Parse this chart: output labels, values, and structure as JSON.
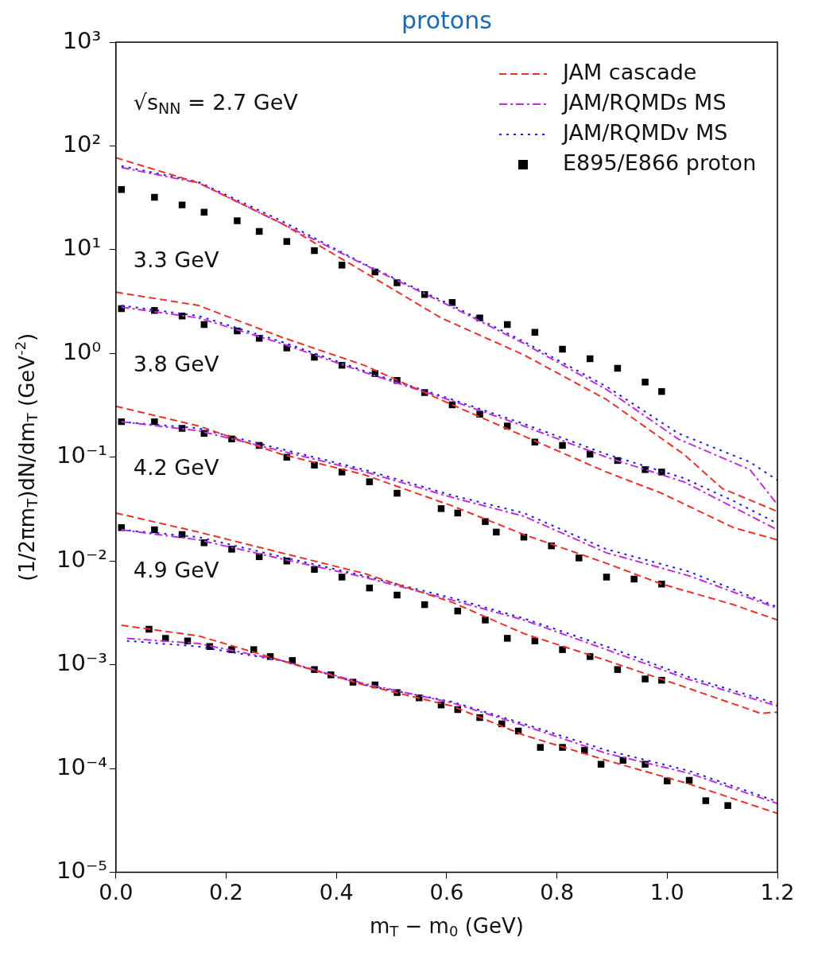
{
  "chart_data": {
    "type": "line",
    "title": "protons",
    "xlabel": "m$_{T}$ − m$_{0}$ (GeV)",
    "ylabel": "(1/2πm$_{T}$)dN/dm$_{T}$ (GeV$^{-2}$)",
    "xlim": [
      0,
      1.2
    ],
    "xticks": [
      {
        "value": 0,
        "label": "0.0"
      },
      0.2,
      0.4,
      0.6,
      0.8,
      {
        "value": 1,
        "label": "1.0"
      },
      1.2
    ],
    "ylim": [
      1e-05,
      1000
    ],
    "log": "y",
    "grid": false,
    "legend": "top right",
    "yticks": [
      {
        "value": 1e-05,
        "label": "10⁻⁵"
      },
      {
        "value": 0.0001,
        "label": "10⁻⁴"
      },
      {
        "value": 0.001,
        "label": "10⁻³"
      },
      {
        "value": 0.01,
        "label": "10⁻²"
      },
      {
        "value": 0.1,
        "label": "10⁻¹"
      },
      {
        "value": 1,
        "label": "10⁰"
      },
      {
        "value": 10,
        "label": "10¹"
      },
      {
        "value": 100,
        "label": "10²"
      },
      {
        "value": 1000,
        "label": "10³"
      }
    ],
    "annotations": [
      "√s$_{NN}$ = 2.7 GeV",
      "3.3 GeV",
      "3.8 GeV",
      "4.2 GeV",
      "4.9 GeV"
    ],
    "series": [
      {
        "name": "JAM cascade",
        "type": "line",
        "color": "#e8332a",
        "line_style": "dashed",
        "marker": "none",
        "x": [
          0,
          0.15,
          0.3,
          0.45,
          0.59,
          0.74,
          0.89,
          1.03,
          1.1,
          1.2
        ],
        "values": [
          77,
          44,
          18,
          6.1,
          2.2,
          0.97,
          0.36,
          0.107,
          0.05,
          0.03
        ]
      },
      {
        "name": "JAM/RQMDs MS",
        "type": "line",
        "color": "#bf2fd8",
        "line_style": "dashdot",
        "marker": "none",
        "x": [
          0.01,
          0.15,
          0.3,
          0.45,
          0.61,
          0.74,
          0.89,
          1.02,
          1.15,
          1.2
        ],
        "values": [
          62,
          44,
          18,
          7.2,
          2.8,
          1.25,
          0.45,
          0.15,
          0.076,
          0.035
        ]
      },
      {
        "name": "JAM/RQMDv MS",
        "type": "line",
        "color": "#1f1fe0",
        "line_style": "dotted",
        "marker": "none",
        "x": [
          0.01,
          0.15,
          0.3,
          0.45,
          0.61,
          0.74,
          0.89,
          1.02,
          1.15,
          1.2
        ],
        "values": [
          64,
          45,
          19,
          7.3,
          2.9,
          1.3,
          0.48,
          0.17,
          0.09,
          0.06
        ]
      },
      {
        "name": "E895/E866 proton",
        "type": "scatter",
        "color": "#000000",
        "marker": "square",
        "x": [
          0.01,
          0.07,
          0.12,
          0.16,
          0.22,
          0.26,
          0.31,
          0.36,
          0.41,
          0.47,
          0.51,
          0.56,
          0.61,
          0.66,
          0.71,
          0.76,
          0.81,
          0.86,
          0.91,
          0.96,
          0.99
        ],
        "values": [
          38,
          32,
          27,
          23,
          19,
          15,
          12,
          9.8,
          7.1,
          6.1,
          4.8,
          3.7,
          3.1,
          2.2,
          1.9,
          1.6,
          1.1,
          0.89,
          0.72,
          0.53,
          0.43
        ]
      },
      {
        "type": "line",
        "color": "#e8332a",
        "line_style": "dashed",
        "marker": "none",
        "x": [
          0,
          0.15,
          0.3,
          0.45,
          0.61,
          0.74,
          0.89,
          0.99,
          1.12,
          1.2
        ],
        "values": [
          3.9,
          2.9,
          1.44,
          0.77,
          0.32,
          0.16,
          0.072,
          0.045,
          0.021,
          0.016
        ]
      },
      {
        "type": "line",
        "color": "#bf2fd8",
        "line_style": "dashdot",
        "marker": "none",
        "x": [
          0.01,
          0.15,
          0.3,
          0.45,
          0.61,
          0.74,
          0.89,
          1.03,
          1.12,
          1.2
        ],
        "values": [
          2.8,
          2.2,
          1.25,
          0.66,
          0.35,
          0.2,
          0.1,
          0.058,
          0.033,
          0.02
        ]
      },
      {
        "type": "line",
        "color": "#1f1fe0",
        "line_style": "dotted",
        "marker": "none",
        "x": [
          0.01,
          0.15,
          0.3,
          0.45,
          0.61,
          0.74,
          0.89,
          1.03,
          1.12,
          1.2
        ],
        "values": [
          2.9,
          2.3,
          1.3,
          0.68,
          0.36,
          0.21,
          0.107,
          0.063,
          0.038,
          0.023
        ]
      },
      {
        "type": "scatter",
        "color": "#000000",
        "marker": "square",
        "x": [
          0.01,
          0.07,
          0.12,
          0.16,
          0.22,
          0.26,
          0.31,
          0.36,
          0.41,
          0.47,
          0.51,
          0.56,
          0.61,
          0.66,
          0.71,
          0.76,
          0.81,
          0.86,
          0.91,
          0.96,
          0.99
        ],
        "values": [
          2.7,
          2.6,
          2.3,
          1.9,
          1.65,
          1.4,
          1.13,
          0.92,
          0.77,
          0.64,
          0.55,
          0.42,
          0.32,
          0.26,
          0.2,
          0.14,
          0.13,
          0.107,
          0.093,
          0.076,
          0.072
        ]
      },
      {
        "type": "line",
        "color": "#e8332a",
        "line_style": "dashed",
        "marker": "none",
        "x": [
          0,
          0.15,
          0.3,
          0.45,
          0.61,
          0.74,
          0.89,
          0.99,
          1.12,
          1.2
        ],
        "values": [
          0.31,
          0.2,
          0.107,
          0.068,
          0.034,
          0.018,
          0.0095,
          0.006,
          0.0038,
          0.0027
        ]
      },
      {
        "type": "line",
        "color": "#bf2fd8",
        "line_style": "dashdot",
        "marker": "none",
        "x": [
          0.01,
          0.15,
          0.3,
          0.45,
          0.61,
          0.74,
          0.89,
          1.04,
          1.2
        ],
        "values": [
          0.22,
          0.18,
          0.115,
          0.073,
          0.041,
          0.027,
          0.012,
          0.0072,
          0.0035
        ]
      },
      {
        "type": "line",
        "color": "#1f1fe0",
        "line_style": "dotted",
        "marker": "none",
        "x": [
          0.01,
          0.15,
          0.3,
          0.45,
          0.61,
          0.74,
          0.89,
          1.04,
          1.2
        ],
        "values": [
          0.22,
          0.19,
          0.12,
          0.076,
          0.043,
          0.029,
          0.013,
          0.0079,
          0.0036
        ]
      },
      {
        "type": "scatter",
        "color": "#000000",
        "marker": "square",
        "x": [
          0.01,
          0.07,
          0.12,
          0.16,
          0.21,
          0.26,
          0.31,
          0.36,
          0.41,
          0.46,
          0.51,
          0.59,
          0.62,
          0.67,
          0.69,
          0.74,
          0.79,
          0.84,
          0.89,
          0.94,
          0.99
        ],
        "values": [
          0.22,
          0.22,
          0.19,
          0.17,
          0.15,
          0.13,
          0.1,
          0.084,
          0.072,
          0.058,
          0.045,
          0.032,
          0.029,
          0.024,
          0.019,
          0.017,
          0.014,
          0.0107,
          0.007,
          0.0067,
          0.006
        ]
      },
      {
        "type": "line",
        "color": "#e8332a",
        "line_style": "dashed",
        "marker": "none",
        "x": [
          0,
          0.15,
          0.3,
          0.45,
          0.61,
          0.74,
          0.89,
          1.04,
          1.17,
          1.2
        ],
        "values": [
          0.029,
          0.019,
          0.012,
          0.0076,
          0.004,
          0.002,
          0.0011,
          0.00059,
          0.00034,
          0.00035
        ]
      },
      {
        "type": "line",
        "color": "#bf2fd8",
        "line_style": "dashdot",
        "marker": "none",
        "x": [
          0.01,
          0.15,
          0.3,
          0.45,
          0.61,
          0.74,
          0.89,
          1.04,
          1.2
        ],
        "values": [
          0.02,
          0.016,
          0.0105,
          0.007,
          0.0042,
          0.0027,
          0.0014,
          0.00072,
          0.0004
        ]
      },
      {
        "type": "line",
        "color": "#1f1fe0",
        "line_style": "dotted",
        "marker": "none",
        "x": [
          0.01,
          0.15,
          0.3,
          0.45,
          0.61,
          0.74,
          0.89,
          1.04,
          1.2
        ],
        "values": [
          0.02,
          0.017,
          0.011,
          0.0072,
          0.0044,
          0.0028,
          0.0015,
          0.00076,
          0.00042
        ]
      },
      {
        "type": "scatter",
        "color": "#000000",
        "marker": "square",
        "x": [
          0.01,
          0.07,
          0.12,
          0.16,
          0.21,
          0.26,
          0.31,
          0.36,
          0.41,
          0.46,
          0.51,
          0.56,
          0.62,
          0.67,
          0.71,
          0.76,
          0.81,
          0.86,
          0.91,
          0.96,
          0.99
        ],
        "values": [
          0.021,
          0.02,
          0.018,
          0.015,
          0.013,
          0.011,
          0.01,
          0.0083,
          0.007,
          0.0055,
          0.0047,
          0.0038,
          0.0033,
          0.0027,
          0.0018,
          0.0017,
          0.0014,
          0.0012,
          0.0009,
          0.00073,
          0.00071
        ]
      },
      {
        "type": "line",
        "color": "#e8332a",
        "line_style": "dashed",
        "marker": "none",
        "x": [
          0.01,
          0.15,
          0.3,
          0.45,
          0.61,
          0.74,
          0.89,
          1.04,
          1.2
        ],
        "values": [
          0.0024,
          0.0019,
          0.0011,
          0.00064,
          0.0004,
          0.00021,
          0.00012,
          7.1e-05,
          3.7e-05
        ]
      },
      {
        "type": "line",
        "color": "#bf2fd8",
        "line_style": "dashdot",
        "marker": "none",
        "x": [
          0.02,
          0.15,
          0.3,
          0.45,
          0.61,
          0.74,
          0.89,
          1.04,
          1.2
        ],
        "values": [
          0.0018,
          0.0016,
          0.0011,
          0.00066,
          0.00043,
          0.00026,
          0.00014,
          9e-05,
          4.6e-05
        ]
      },
      {
        "type": "line",
        "color": "#1f1fe0",
        "line_style": "dotted",
        "marker": "none",
        "x": [
          0.02,
          0.15,
          0.3,
          0.45,
          0.61,
          0.74,
          0.89,
          1.04,
          1.2
        ],
        "values": [
          0.0017,
          0.0015,
          0.0011,
          0.00064,
          0.00044,
          0.00027,
          0.00015,
          9.5e-05,
          4.8e-05
        ]
      },
      {
        "type": "scatter",
        "color": "#000000",
        "marker": "square",
        "x": [
          0.06,
          0.09,
          0.13,
          0.17,
          0.21,
          0.25,
          0.28,
          0.32,
          0.36,
          0.39,
          0.43,
          0.47,
          0.51,
          0.55,
          0.59,
          0.62,
          0.66,
          0.7,
          0.73,
          0.77,
          0.81,
          0.85,
          0.88,
          0.92,
          0.96,
          1.0,
          1.04,
          1.07,
          1.11
        ],
        "values": [
          0.0022,
          0.0018,
          0.0017,
          0.0015,
          0.0014,
          0.0014,
          0.0012,
          0.0011,
          0.0009,
          0.0008,
          0.00068,
          0.00064,
          0.00054,
          0.00048,
          0.00041,
          0.00037,
          0.00031,
          0.00027,
          0.00023,
          0.00016,
          0.00016,
          0.00015,
          0.00011,
          0.00012,
          0.00011,
          7.6e-05,
          7.7e-05,
          4.9e-05,
          4.4e-05
        ]
      }
    ]
  }
}
